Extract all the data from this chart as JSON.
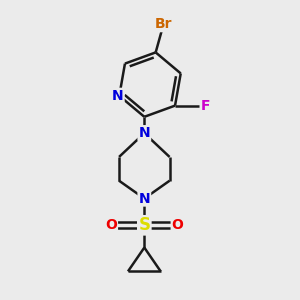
{
  "background_color": "#ebebeb",
  "bond_color": "#1a1a1a",
  "bond_width": 1.8,
  "atom_labels": {
    "Br": {
      "color": "#cc6600",
      "fontsize": 10,
      "fontweight": "bold"
    },
    "F": {
      "color": "#cc00cc",
      "fontsize": 10,
      "fontweight": "bold"
    },
    "N": {
      "color": "#0000dd",
      "fontsize": 10,
      "fontweight": "bold"
    },
    "S": {
      "color": "#dddd00",
      "fontsize": 12,
      "fontweight": "bold"
    },
    "O": {
      "color": "#ee0000",
      "fontsize": 10,
      "fontweight": "bold"
    }
  }
}
